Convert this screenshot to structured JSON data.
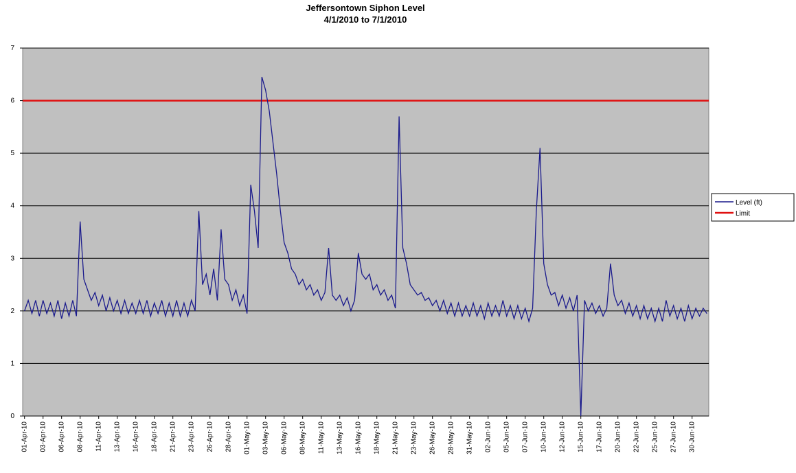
{
  "chart_data": {
    "type": "line",
    "title": "Jeffersontown Siphon Level",
    "subtitle": "4/1/2010 to 7/1/2010",
    "categories": [
      "01-Apr-10",
      null,
      null,
      null,
      null,
      "03-Apr-10",
      null,
      null,
      null,
      null,
      "06-Apr-10",
      null,
      null,
      null,
      null,
      "08-Apr-10",
      null,
      null,
      null,
      null,
      "11-Apr-10",
      null,
      null,
      null,
      null,
      "13-Apr-10",
      null,
      null,
      null,
      null,
      "16-Apr-10",
      null,
      null,
      null,
      null,
      "18-Apr-10",
      null,
      null,
      null,
      null,
      "21-Apr-10",
      null,
      null,
      null,
      null,
      "23-Apr-10",
      null,
      null,
      null,
      null,
      "26-Apr-10",
      null,
      null,
      null,
      null,
      "28-Apr-10",
      null,
      null,
      null,
      null,
      "01-May-10",
      null,
      null,
      null,
      null,
      "03-May-10",
      null,
      null,
      null,
      null,
      "06-May-10",
      null,
      null,
      null,
      null,
      "08-May-10",
      null,
      null,
      null,
      null,
      "11-May-10",
      null,
      null,
      null,
      null,
      "13-May-10",
      null,
      null,
      null,
      null,
      "16-May-10",
      null,
      null,
      null,
      null,
      "18-May-10",
      null,
      null,
      null,
      null,
      "21-May-10",
      null,
      null,
      null,
      null,
      "23-May-10",
      null,
      null,
      null,
      null,
      "26-May-10",
      null,
      null,
      null,
      null,
      "28-May-10",
      null,
      null,
      null,
      null,
      "31-May-10",
      null,
      null,
      null,
      null,
      "02-Jun-10",
      null,
      null,
      null,
      null,
      "05-Jun-10",
      null,
      null,
      null,
      null,
      "07-Jun-10",
      null,
      null,
      null,
      null,
      "10-Jun-10",
      null,
      null,
      null,
      null,
      "12-Jun-10",
      null,
      null,
      null,
      null,
      "15-Jun-10",
      null,
      null,
      null,
      null,
      "17-Jun-10",
      null,
      null,
      null,
      null,
      "20-Jun-10",
      null,
      null,
      null,
      null,
      "22-Jun-10",
      null,
      null,
      null,
      null,
      "25-Jun-10",
      null,
      null,
      null,
      null,
      "27-Jun-10",
      null,
      null,
      null,
      null,
      "30-Jun-10",
      null,
      null,
      null,
      null
    ],
    "series": [
      {
        "name": "Level (ft)",
        "color": "#1a1a8c",
        "values": [
          2.0,
          2.2,
          1.95,
          2.2,
          1.9,
          2.2,
          1.95,
          2.15,
          1.9,
          2.2,
          1.85,
          2.15,
          1.9,
          2.2,
          1.9,
          3.7,
          2.6,
          2.4,
          2.2,
          2.35,
          2.1,
          2.3,
          2.0,
          2.25,
          2.0,
          2.2,
          1.95,
          2.2,
          1.95,
          2.15,
          1.95,
          2.2,
          1.95,
          2.2,
          1.9,
          2.15,
          1.95,
          2.2,
          1.9,
          2.15,
          1.9,
          2.2,
          1.9,
          2.15,
          1.9,
          2.2,
          2.0,
          3.9,
          2.5,
          2.7,
          2.3,
          2.8,
          2.2,
          3.55,
          2.6,
          2.5,
          2.2,
          2.4,
          2.1,
          2.3,
          1.95,
          4.4,
          3.9,
          3.2,
          6.45,
          6.2,
          5.8,
          5.2,
          4.6,
          3.9,
          3.3,
          3.1,
          2.8,
          2.7,
          2.5,
          2.6,
          2.4,
          2.5,
          2.3,
          2.4,
          2.2,
          2.35,
          3.2,
          2.3,
          2.2,
          2.3,
          2.1,
          2.25,
          2.0,
          2.2,
          3.1,
          2.7,
          2.6,
          2.7,
          2.4,
          2.5,
          2.3,
          2.4,
          2.2,
          2.3,
          2.05,
          5.7,
          3.2,
          2.9,
          2.5,
          2.4,
          2.3,
          2.35,
          2.2,
          2.25,
          2.1,
          2.2,
          2.0,
          2.2,
          1.95,
          2.15,
          1.9,
          2.15,
          1.9,
          2.1,
          1.9,
          2.15,
          1.9,
          2.1,
          1.85,
          2.15,
          1.9,
          2.1,
          1.9,
          2.2,
          1.9,
          2.1,
          1.85,
          2.1,
          1.85,
          2.05,
          1.8,
          2.05,
          3.9,
          5.1,
          2.9,
          2.5,
          2.3,
          2.35,
          2.1,
          2.3,
          2.05,
          2.25,
          2.0,
          2.3,
          0,
          2.2,
          2.0,
          2.15,
          1.95,
          2.1,
          1.9,
          2.05,
          2.9,
          2.3,
          2.1,
          2.2,
          1.95,
          2.15,
          1.9,
          2.1,
          1.85,
          2.1,
          1.85,
          2.05,
          1.8,
          2.05,
          1.8,
          2.2,
          1.9,
          2.1,
          1.85,
          2.05,
          1.8,
          2.1,
          1.85,
          2.05,
          1.9,
          2.05,
          1.95
        ]
      }
    ],
    "limit": {
      "name": "Limit",
      "value": 6,
      "color": "#e01010"
    },
    "ylim": [
      0,
      7
    ],
    "yticks": [
      0,
      1,
      2,
      3,
      4,
      5,
      6,
      7
    ],
    "grid": true,
    "background": "#c0c0c0",
    "legend": "right"
  }
}
